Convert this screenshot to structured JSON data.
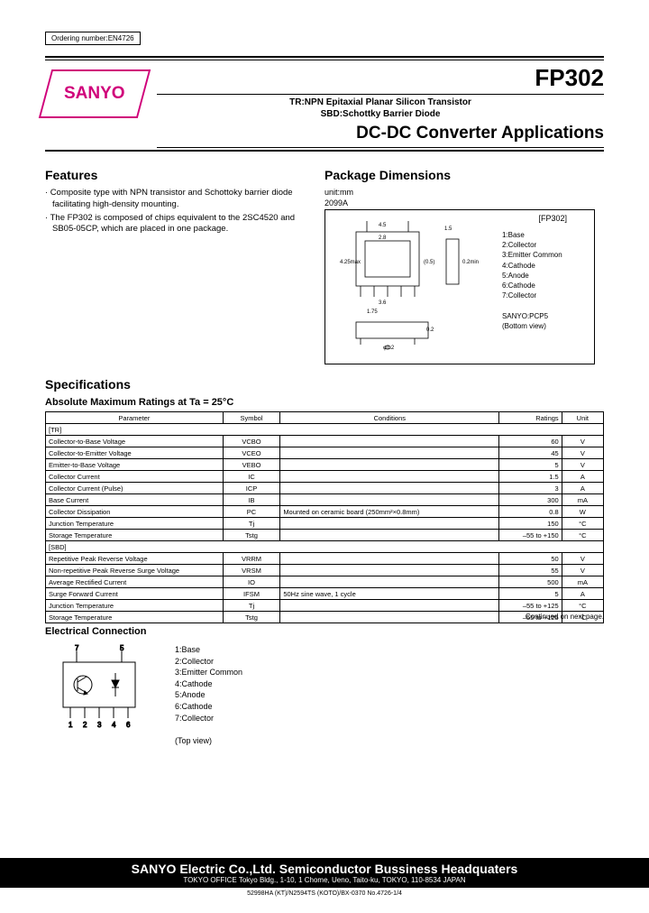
{
  "ordering_number": "Ordering number:EN4726",
  "logo": "SANYO",
  "part_number": "FP302",
  "subtitle_line1": "TR:NPN Epitaxial Planar Silicon Transistor",
  "subtitle_line2": "SBD:Schottky Barrier Diode",
  "main_title": "DC-DC Converter Applications",
  "features_heading": "Features",
  "features": [
    "· Composite type with NPN transistor and Schottoky barrier diode facilitating high-density mounting.",
    "· The FP302 is composed of chips equivalent to the 2SC4520 and SB05-05CP, which are placed in one package."
  ],
  "package_heading": "Package Dimensions",
  "package_unit": "unit:mm",
  "package_code": "2099A",
  "package_label": "[FP302]",
  "pin_labels": [
    "1:Base",
    "2:Collector",
    "3:Emitter Common",
    "4:Cathode",
    "5:Anode",
    "6:Cathode",
    "7:Collector"
  ],
  "package_footer1": "SANYO:PCP5",
  "package_footer2": "(Bottom view)",
  "specs_heading": "Specifications",
  "specs_subheading": "Absolute Maximum Ratings at Ta = 25°C",
  "table_headers": [
    "Parameter",
    "Symbol",
    "Conditions",
    "Ratings",
    "Unit"
  ],
  "table_rows": [
    {
      "cat": "[TR]"
    },
    {
      "p": "Collector-to-Base Voltage",
      "s": "VCBO",
      "c": "",
      "r": "60",
      "u": "V"
    },
    {
      "p": "Collector-to-Emitter Voltage",
      "s": "VCEO",
      "c": "",
      "r": "45",
      "u": "V"
    },
    {
      "p": "Emitter-to-Base Voltage",
      "s": "VEBO",
      "c": "",
      "r": "5",
      "u": "V"
    },
    {
      "p": "Collector Current",
      "s": "IC",
      "c": "",
      "r": "1.5",
      "u": "A"
    },
    {
      "p": "Collector Current (Pulse)",
      "s": "ICP",
      "c": "",
      "r": "3",
      "u": "A"
    },
    {
      "p": "Base Current",
      "s": "IB",
      "c": "",
      "r": "300",
      "u": "mA"
    },
    {
      "p": "Collector Dissipation",
      "s": "PC",
      "c": "Mounted on ceramic board (250mm²×0.8mm)",
      "r": "0.8",
      "u": "W"
    },
    {
      "p": "Junction Temperature",
      "s": "Tj",
      "c": "",
      "r": "150",
      "u": "°C"
    },
    {
      "p": "Storage Temperature",
      "s": "Tstg",
      "c": "",
      "r": "–55 to +150",
      "u": "°C"
    },
    {
      "cat": "[SBD]"
    },
    {
      "p": "Repetitive Peak Reverse Voltage",
      "s": "VRRM",
      "c": "",
      "r": "50",
      "u": "V"
    },
    {
      "p": "Non-repetitive Peak Reverse Surge Voltage",
      "s": "VRSM",
      "c": "",
      "r": "55",
      "u": "V"
    },
    {
      "p": "Average Rectified Current",
      "s": "IO",
      "c": "",
      "r": "500",
      "u": "mA"
    },
    {
      "p": "Surge Forward Current",
      "s": "IFSM",
      "c": "50Hz sine wave, 1 cycle",
      "r": "5",
      "u": "A"
    },
    {
      "p": "Junction Temperature",
      "s": "Tj",
      "c": "",
      "r": "–55 to +125",
      "u": "°C"
    },
    {
      "p": "Storage Temperature",
      "s": "Tstg",
      "c": "",
      "r": "–55 to +125",
      "u": "°C"
    }
  ],
  "elec_heading": "Electrical Connection",
  "elec_labels": [
    "1:Base",
    "2:Collector",
    "3:Emitter Common",
    "4:Cathode",
    "5:Anode",
    "6:Cathode",
    "7:Collector"
  ],
  "elec_view": "(Top view)",
  "continued": "Continued on next page.",
  "footer_company": "SANYO Electric Co.,Ltd. Semiconductor Bussiness Headquaters",
  "footer_addr": "TOKYO OFFICE Tokyo Bldg., 1-10, 1 Chome, Ueno, Taito-ku, TOKYO, 110-8534 JAPAN",
  "footer_code": "52998HA (KT)/N2594TS (KOTO)/BX-0370 No.4726-1/4"
}
